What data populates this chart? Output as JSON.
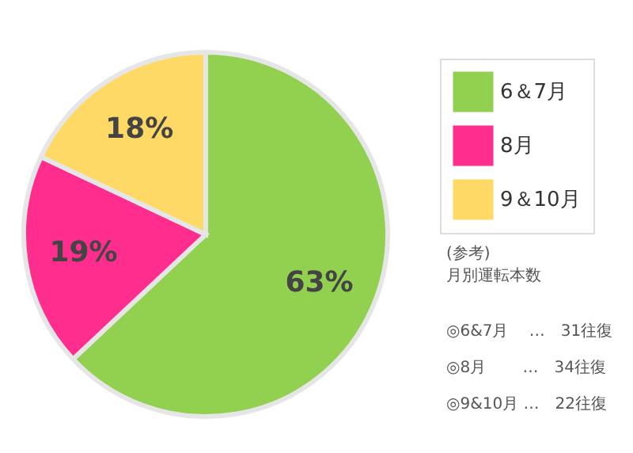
{
  "chart_data": {
    "type": "pie",
    "categories": [
      "6＆7月",
      "8月",
      "9＆10月"
    ],
    "values": [
      63,
      19,
      18
    ],
    "colors": [
      "#92d050",
      "#ff2e8e",
      "#ffd966"
    ],
    "value_labels": [
      "63%",
      "19%",
      "18%"
    ],
    "legend": "right",
    "annotations": [
      "(参考)",
      "月別運転本数",
      "◎6&7月　 …　31往復",
      "◎8月　　 …　34往復",
      "◎9&10月 …　22往復"
    ]
  }
}
